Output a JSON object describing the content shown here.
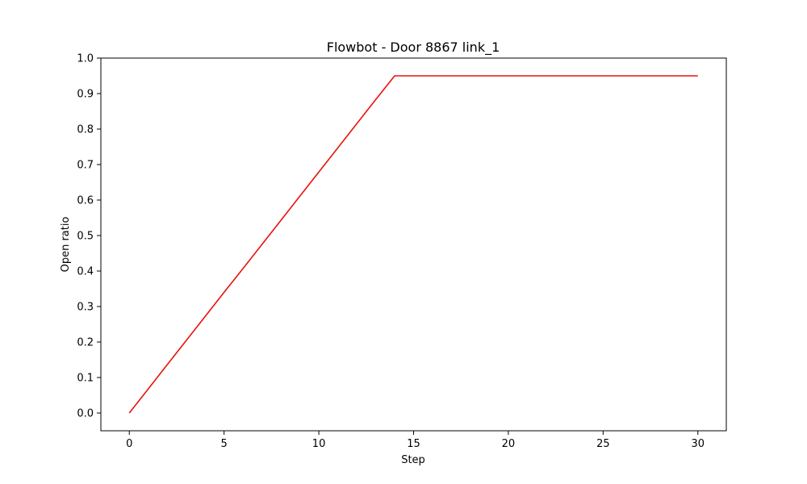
{
  "chart_data": {
    "type": "line",
    "title": "Flowbot - Door 8867 link_1",
    "xlabel": "Step",
    "ylabel": "Open ratio",
    "xlim": [
      -1.5,
      31.5
    ],
    "ylim": [
      -0.05,
      1.0
    ],
    "xticks": [
      0,
      5,
      10,
      15,
      20,
      25,
      30
    ],
    "xtick_labels": [
      "0",
      "5",
      "10",
      "15",
      "20",
      "25",
      "30"
    ],
    "yticks": [
      0.0,
      0.1,
      0.2,
      0.3,
      0.4,
      0.5,
      0.6,
      0.7,
      0.8,
      0.9,
      1.0
    ],
    "ytick_labels": [
      "0.0",
      "0.1",
      "0.2",
      "0.3",
      "0.4",
      "0.5",
      "0.6",
      "0.7",
      "0.8",
      "0.9",
      "1.0"
    ],
    "grid": false,
    "series": [
      {
        "color": "#e8120c",
        "x": [
          0,
          1,
          2,
          3,
          4,
          5,
          6,
          7,
          8,
          9,
          10,
          11,
          12,
          13,
          14,
          15,
          16,
          17,
          18,
          19,
          20,
          21,
          22,
          23,
          24,
          25,
          26,
          27,
          28,
          29,
          30
        ],
        "y": [
          0.0,
          0.068,
          0.136,
          0.204,
          0.272,
          0.34,
          0.407,
          0.475,
          0.543,
          0.611,
          0.679,
          0.747,
          0.815,
          0.883,
          0.95,
          0.95,
          0.95,
          0.95,
          0.95,
          0.95,
          0.95,
          0.95,
          0.95,
          0.95,
          0.95,
          0.95,
          0.95,
          0.95,
          0.95,
          0.95,
          0.95
        ]
      }
    ]
  }
}
